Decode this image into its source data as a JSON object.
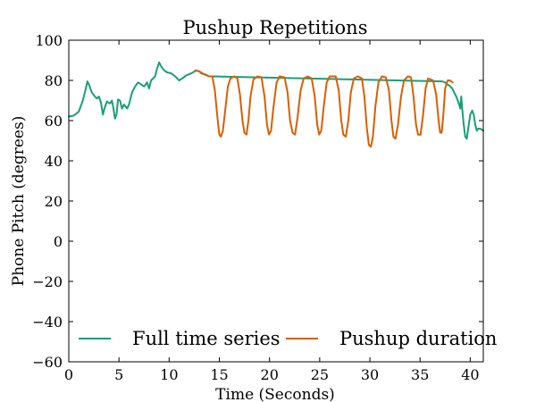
{
  "chart_data": {
    "type": "line",
    "title": "Pushup Repetitions",
    "xlabel": "Time (Seconds)",
    "ylabel": "Phone Pitch (degrees)",
    "xlim": [
      0,
      41.3
    ],
    "ylim": [
      -60,
      100
    ],
    "x_ticks": [
      0,
      5,
      10,
      15,
      20,
      25,
      30,
      35,
      40
    ],
    "y_ticks": [
      -60,
      -40,
      -20,
      0,
      20,
      40,
      60,
      80,
      100
    ],
    "grid": false,
    "legend": {
      "placement": "bottom",
      "entries": [
        "Full time series",
        "Pushup duration"
      ]
    },
    "series": [
      {
        "name": "Full time series",
        "color": "#1b9e77",
        "points": [
          [
            0.0,
            62
          ],
          [
            0.5,
            62.5
          ],
          [
            1.0,
            64.5
          ],
          [
            1.4,
            70
          ],
          [
            1.7,
            76
          ],
          [
            1.85,
            79.5
          ],
          [
            2.0,
            78
          ],
          [
            2.3,
            74
          ],
          [
            2.6,
            72
          ],
          [
            2.8,
            71
          ],
          [
            3.0,
            72
          ],
          [
            3.2,
            69
          ],
          [
            3.4,
            63
          ],
          [
            3.55,
            66
          ],
          [
            3.8,
            69.5
          ],
          [
            4.1,
            68.5
          ],
          [
            4.3,
            70
          ],
          [
            4.45,
            66
          ],
          [
            4.6,
            61
          ],
          [
            4.75,
            63
          ],
          [
            4.9,
            70.5
          ],
          [
            5.1,
            70
          ],
          [
            5.3,
            66
          ],
          [
            5.5,
            68
          ],
          [
            5.8,
            66
          ],
          [
            6.0,
            68
          ],
          [
            6.3,
            74
          ],
          [
            6.6,
            77
          ],
          [
            6.9,
            79
          ],
          [
            7.2,
            78
          ],
          [
            7.5,
            77
          ],
          [
            7.8,
            79
          ],
          [
            8.0,
            76
          ],
          [
            8.2,
            80
          ],
          [
            8.4,
            81
          ],
          [
            8.6,
            82
          ],
          [
            8.8,
            86
          ],
          [
            9.0,
            89
          ],
          [
            9.2,
            87
          ],
          [
            9.5,
            85
          ],
          [
            9.8,
            84
          ],
          [
            10.2,
            83.5
          ],
          [
            10.6,
            82
          ],
          [
            11.0,
            80
          ],
          [
            11.3,
            81
          ],
          [
            11.7,
            82.5
          ],
          [
            12.2,
            83.5
          ],
          [
            12.7,
            85
          ],
          [
            13.0,
            84.5
          ],
          [
            13.2,
            83.5
          ],
          [
            13.6,
            83
          ],
          [
            14.0,
            82
          ],
          [
            14.3,
            82
          ],
          [
            37.2,
            79.5
          ],
          [
            37.5,
            79
          ],
          [
            37.7,
            78
          ],
          [
            37.9,
            77.5
          ],
          [
            38.2,
            76
          ],
          [
            38.4,
            74
          ],
          [
            38.6,
            72
          ],
          [
            38.75,
            70
          ],
          [
            38.9,
            68
          ],
          [
            39.0,
            66
          ],
          [
            39.1,
            72
          ],
          [
            39.2,
            66
          ],
          [
            39.35,
            58
          ],
          [
            39.5,
            52
          ],
          [
            39.65,
            51
          ],
          [
            39.8,
            56
          ],
          [
            40.0,
            63
          ],
          [
            40.2,
            65
          ],
          [
            40.35,
            63
          ],
          [
            40.5,
            58
          ],
          [
            40.65,
            55
          ],
          [
            40.8,
            56
          ],
          [
            41.0,
            56
          ],
          [
            41.3,
            55
          ]
        ]
      },
      {
        "name": "Pushup duration",
        "color": "#d95f02",
        "points": [
          [
            12.6,
            85
          ],
          [
            13.0,
            84.5
          ],
          [
            13.5,
            83
          ],
          [
            14.0,
            82
          ],
          [
            14.3,
            82
          ],
          [
            14.55,
            75
          ],
          [
            14.8,
            62
          ],
          [
            15.0,
            53
          ],
          [
            15.15,
            52
          ],
          [
            15.35,
            55
          ],
          [
            15.6,
            66
          ],
          [
            15.85,
            77
          ],
          [
            16.1,
            81
          ],
          [
            16.5,
            82
          ],
          [
            16.8,
            81
          ],
          [
            17.05,
            73
          ],
          [
            17.3,
            60
          ],
          [
            17.5,
            54
          ],
          [
            17.7,
            53
          ],
          [
            17.9,
            60
          ],
          [
            18.1,
            72
          ],
          [
            18.4,
            80.5
          ],
          [
            18.8,
            82
          ],
          [
            19.2,
            81.5
          ],
          [
            19.5,
            72
          ],
          [
            19.75,
            58
          ],
          [
            19.95,
            53
          ],
          [
            20.15,
            55
          ],
          [
            20.4,
            67
          ],
          [
            20.7,
            79
          ],
          [
            21.0,
            82
          ],
          [
            21.5,
            81.5
          ],
          [
            21.8,
            74
          ],
          [
            22.05,
            60
          ],
          [
            22.3,
            54
          ],
          [
            22.55,
            53
          ],
          [
            22.8,
            62
          ],
          [
            23.1,
            75
          ],
          [
            23.4,
            81
          ],
          [
            23.8,
            82
          ],
          [
            24.2,
            81
          ],
          [
            24.5,
            72
          ],
          [
            24.75,
            58
          ],
          [
            24.95,
            53
          ],
          [
            25.15,
            55
          ],
          [
            25.4,
            67
          ],
          [
            25.7,
            79
          ],
          [
            26.0,
            82
          ],
          [
            26.6,
            82
          ],
          [
            26.9,
            75
          ],
          [
            27.15,
            60
          ],
          [
            27.35,
            53
          ],
          [
            27.6,
            52
          ],
          [
            27.85,
            60
          ],
          [
            28.1,
            74
          ],
          [
            28.4,
            81
          ],
          [
            28.8,
            82
          ],
          [
            29.2,
            81
          ],
          [
            29.45,
            72
          ],
          [
            29.7,
            56
          ],
          [
            29.9,
            48
          ],
          [
            30.1,
            47
          ],
          [
            30.3,
            52
          ],
          [
            30.55,
            67
          ],
          [
            30.85,
            79
          ],
          [
            31.2,
            82
          ],
          [
            31.6,
            81.5
          ],
          [
            31.9,
            75
          ],
          [
            32.15,
            60
          ],
          [
            32.35,
            52
          ],
          [
            32.55,
            51
          ],
          [
            32.8,
            58
          ],
          [
            33.1,
            72
          ],
          [
            33.4,
            80
          ],
          [
            33.8,
            82
          ],
          [
            34.1,
            81.5
          ],
          [
            34.35,
            72
          ],
          [
            34.6,
            58
          ],
          [
            34.8,
            53
          ],
          [
            35.05,
            53
          ],
          [
            35.3,
            63
          ],
          [
            35.55,
            76
          ],
          [
            35.8,
            81
          ],
          [
            36.3,
            80
          ],
          [
            36.6,
            73
          ],
          [
            36.85,
            60
          ],
          [
            37.0,
            54
          ],
          [
            37.15,
            54
          ],
          [
            37.3,
            62
          ],
          [
            37.5,
            76
          ],
          [
            37.75,
            80
          ],
          [
            37.95,
            80
          ],
          [
            38.1,
            79.5
          ],
          [
            38.25,
            79
          ]
        ]
      }
    ]
  }
}
